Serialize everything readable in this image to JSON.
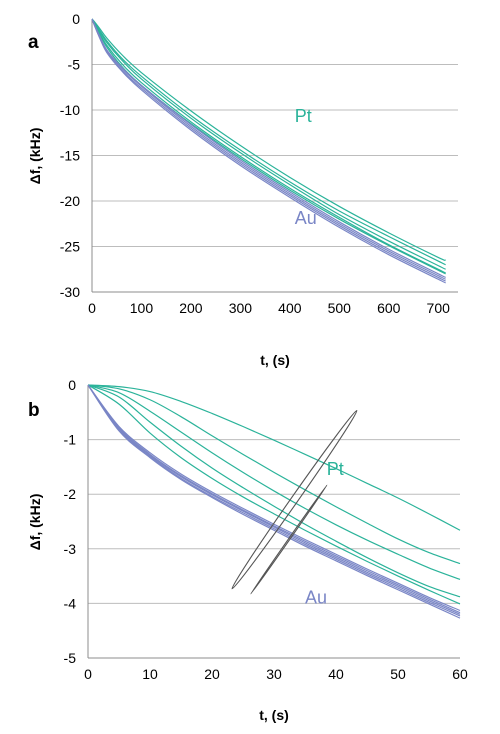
{
  "chart_data": [
    {
      "panel": "a",
      "type": "line",
      "title": "",
      "xlabel": "t, (s)",
      "ylabel": "Δf, (kHz)",
      "xlim": [
        0,
        740
      ],
      "ylim": [
        -30,
        0
      ],
      "xticks": [
        0,
        100,
        200,
        300,
        400,
        500,
        600,
        700
      ],
      "yticks": [
        0,
        -5,
        -10,
        -15,
        -20,
        -25,
        -30
      ],
      "grid": "horizontal",
      "colors": {
        "Pt": "#2bb39a",
        "Au": "#7a86c6"
      },
      "annotations": [
        {
          "text": "Pt",
          "x": 410,
          "y": -11.3,
          "color": "#2bb39a"
        },
        {
          "text": "Au",
          "x": 410,
          "y": -22.5,
          "color": "#7a86c6"
        }
      ],
      "series": [
        {
          "group": "Pt",
          "x": [
            0,
            5,
            15,
            30,
            60,
            100,
            200,
            300,
            400,
            500,
            600,
            700,
            715
          ],
          "y": [
            0,
            -0.4,
            -1.2,
            -2.4,
            -4.3,
            -6.3,
            -10.6,
            -14.4,
            -17.9,
            -21.1,
            -23.9,
            -26.6,
            -27.0
          ]
        },
        {
          "group": "Pt",
          "x": [
            0,
            5,
            15,
            30,
            60,
            100,
            200,
            300,
            400,
            500,
            600,
            700,
            715
          ],
          "y": [
            0,
            -0.4,
            -1.3,
            -2.6,
            -4.5,
            -6.6,
            -10.9,
            -14.7,
            -18.2,
            -21.5,
            -24.4,
            -27.1,
            -27.5
          ]
        },
        {
          "group": "Pt",
          "x": [
            0,
            5,
            15,
            30,
            60,
            100,
            200,
            300,
            400,
            500,
            600,
            700,
            715
          ],
          "y": [
            0,
            -0.5,
            -1.5,
            -2.9,
            -4.9,
            -7.0,
            -11.3,
            -15.1,
            -18.6,
            -21.8,
            -24.8,
            -27.5,
            -27.9
          ]
        },
        {
          "group": "Pt",
          "x": [
            0,
            5,
            15,
            30,
            60,
            100,
            200,
            300,
            400,
            500,
            600,
            700,
            715
          ],
          "y": [
            0,
            -0.3,
            -1.0,
            -2.1,
            -3.9,
            -5.9,
            -10.1,
            -13.9,
            -17.4,
            -20.6,
            -23.5,
            -26.2,
            -26.5
          ]
        },
        {
          "group": "Pt",
          "x": [
            0,
            5,
            15,
            30,
            60,
            100,
            200,
            300,
            400,
            500,
            600,
            700,
            715
          ],
          "y": [
            0,
            -0.5,
            -1.6,
            -3.1,
            -5.2,
            -7.3,
            -11.5,
            -15.3,
            -18.8,
            -22.0,
            -24.9,
            -27.6,
            -28.0
          ]
        },
        {
          "group": "Au",
          "x": [
            0,
            5,
            15,
            30,
            60,
            100,
            200,
            300,
            400,
            500,
            600,
            700,
            715
          ],
          "y": [
            0,
            -0.6,
            -1.8,
            -3.4,
            -5.3,
            -7.3,
            -11.6,
            -15.5,
            -19.0,
            -22.3,
            -25.3,
            -28.0,
            -28.4
          ]
        },
        {
          "group": "Au",
          "x": [
            0,
            5,
            15,
            30,
            60,
            100,
            200,
            300,
            400,
            500,
            600,
            700,
            715
          ],
          "y": [
            0,
            -0.6,
            -1.9,
            -3.5,
            -5.4,
            -7.4,
            -11.8,
            -15.7,
            -19.2,
            -22.5,
            -25.5,
            -28.2,
            -28.6
          ]
        },
        {
          "group": "Au",
          "x": [
            0,
            5,
            15,
            30,
            60,
            100,
            200,
            300,
            400,
            500,
            600,
            700,
            715
          ],
          "y": [
            0,
            -0.7,
            -2.0,
            -3.6,
            -5.6,
            -7.6,
            -12.0,
            -15.9,
            -19.4,
            -22.7,
            -25.7,
            -28.4,
            -28.8
          ]
        },
        {
          "group": "Au",
          "x": [
            0,
            5,
            15,
            30,
            60,
            100,
            200,
            300,
            400,
            500,
            600,
            700,
            715
          ],
          "y": [
            0,
            -0.7,
            -2.0,
            -3.7,
            -5.7,
            -7.8,
            -12.2,
            -16.1,
            -19.6,
            -22.9,
            -25.9,
            -28.6,
            -29.0
          ]
        }
      ]
    },
    {
      "panel": "b",
      "type": "line",
      "title": "",
      "xlabel": "t, (s)",
      "ylabel": "Δf, (kHz)",
      "xlim": [
        0,
        60
      ],
      "ylim": [
        -5,
        0
      ],
      "xticks": [
        0,
        10,
        20,
        30,
        40,
        50,
        60
      ],
      "yticks": [
        0,
        -1,
        -2,
        -3,
        -4,
        -5
      ],
      "grid": "horizontal",
      "colors": {
        "Pt": "#2bb39a",
        "Au": "#7a86c6"
      },
      "annotations": [
        {
          "text": "Pt",
          "x": 38.5,
          "y": -1.65,
          "color": "#2bb39a"
        },
        {
          "text": "Au",
          "x": 35.0,
          "y": -4.0,
          "color": "#7a86c6"
        }
      ],
      "ellipses": [
        {
          "group": "Pt",
          "cx": 33.3,
          "cy": -2.1,
          "rx": 0.9,
          "ry": 0.62,
          "rotate": -55
        },
        {
          "group": "Au",
          "cx": 32.4,
          "cy": -2.83,
          "rx": 0.55,
          "ry": 0.12,
          "rotate": -55
        }
      ],
      "series": [
        {
          "group": "Pt",
          "x": [
            0,
            5,
            10,
            15,
            20,
            25,
            30,
            35,
            40,
            45,
            50,
            55,
            60
          ],
          "y": [
            0,
            -0.03,
            -0.12,
            -0.3,
            -0.52,
            -0.76,
            -1.01,
            -1.27,
            -1.53,
            -1.8,
            -2.07,
            -2.36,
            -2.66
          ]
        },
        {
          "group": "Pt",
          "x": [
            0,
            5,
            10,
            15,
            20,
            25,
            30,
            35,
            40,
            45,
            50,
            55,
            60
          ],
          "y": [
            0,
            -0.07,
            -0.27,
            -0.58,
            -0.93,
            -1.27,
            -1.6,
            -1.92,
            -2.23,
            -2.53,
            -2.82,
            -3.07,
            -3.27
          ]
        },
        {
          "group": "Pt",
          "x": [
            0,
            5,
            10,
            15,
            20,
            25,
            30,
            35,
            40,
            45,
            50,
            55,
            60
          ],
          "y": [
            0,
            -0.14,
            -0.48,
            -0.86,
            -1.24,
            -1.6,
            -1.94,
            -2.26,
            -2.56,
            -2.84,
            -3.1,
            -3.35,
            -3.56
          ]
        },
        {
          "group": "Pt",
          "x": [
            0,
            5,
            10,
            15,
            20,
            25,
            30,
            35,
            40,
            45,
            50,
            55,
            60
          ],
          "y": [
            0,
            -0.22,
            -0.68,
            -1.12,
            -1.52,
            -1.88,
            -2.22,
            -2.55,
            -2.86,
            -3.16,
            -3.44,
            -3.69,
            -3.88
          ]
        },
        {
          "group": "Pt",
          "x": [
            0,
            5,
            10,
            15,
            20,
            25,
            30,
            35,
            40,
            45,
            50,
            55,
            60
          ],
          "y": [
            0,
            -0.35,
            -0.88,
            -1.33,
            -1.71,
            -2.05,
            -2.36,
            -2.66,
            -2.95,
            -3.23,
            -3.5,
            -3.76,
            -4.01
          ]
        },
        {
          "group": "Au",
          "x": [
            0,
            5,
            10,
            15,
            20,
            25,
            30,
            35,
            40,
            45,
            50,
            55,
            60
          ],
          "y": [
            0,
            -0.76,
            -1.24,
            -1.63,
            -1.96,
            -2.26,
            -2.55,
            -2.83,
            -3.1,
            -3.37,
            -3.63,
            -3.89,
            -4.13
          ]
        },
        {
          "group": "Au",
          "x": [
            0,
            5,
            10,
            15,
            20,
            25,
            30,
            35,
            40,
            45,
            50,
            55,
            60
          ],
          "y": [
            0,
            -0.78,
            -1.27,
            -1.66,
            -1.99,
            -2.29,
            -2.58,
            -2.86,
            -3.13,
            -3.4,
            -3.66,
            -3.92,
            -4.17
          ]
        },
        {
          "group": "Au",
          "x": [
            0,
            5,
            10,
            15,
            20,
            25,
            30,
            35,
            40,
            45,
            50,
            55,
            60
          ],
          "y": [
            0,
            -0.8,
            -1.29,
            -1.68,
            -2.01,
            -2.31,
            -2.6,
            -2.89,
            -3.16,
            -3.43,
            -3.69,
            -3.95,
            -4.2
          ]
        },
        {
          "group": "Au",
          "x": [
            0,
            5,
            10,
            15,
            20,
            25,
            30,
            35,
            40,
            45,
            50,
            55,
            60
          ],
          "y": [
            0,
            -0.82,
            -1.31,
            -1.71,
            -2.04,
            -2.34,
            -2.63,
            -2.92,
            -3.19,
            -3.46,
            -3.72,
            -3.98,
            -4.23
          ]
        },
        {
          "group": "Au",
          "x": [
            0,
            5,
            10,
            15,
            20,
            25,
            30,
            35,
            40,
            45,
            50,
            55,
            60
          ],
          "y": [
            0,
            -0.84,
            -1.33,
            -1.73,
            -2.06,
            -2.37,
            -2.66,
            -2.95,
            -3.22,
            -3.49,
            -3.75,
            -4.01,
            -4.27
          ]
        }
      ]
    }
  ]
}
